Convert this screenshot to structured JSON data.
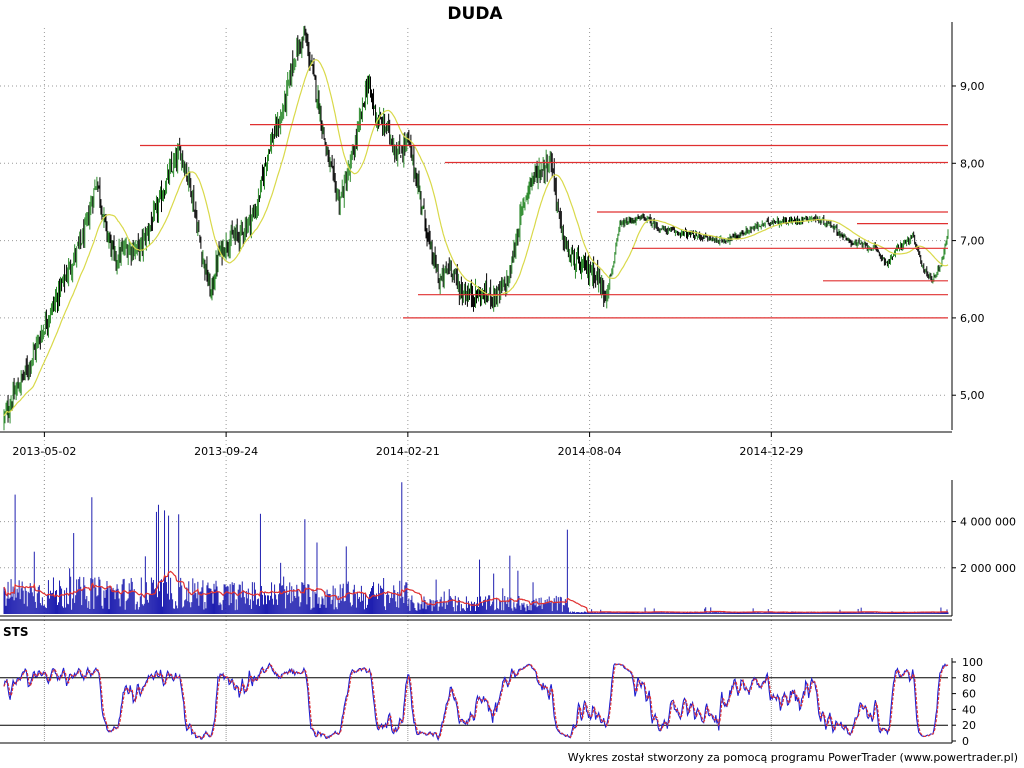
{
  "chart_data": {
    "type": "candlestick",
    "title": "DUDA",
    "footer": "Wykres został stworzony za pomocą programu PowerTrader (www.powertrader.pl)",
    "colors": {
      "grid": "#9a9a9a",
      "up_candle": "#2e8b2e",
      "down_candle": "#000000",
      "moving_average": "#d9d94a",
      "support_resistance": "#e03030",
      "volume_bars": "#1f1fb0",
      "volume_average": "#e03030",
      "stoch_k": "#1f1fd0",
      "stoch_d": "#e03030"
    },
    "price_panel": {
      "y_ticks": [
        "9,00",
        "8,00",
        "7,00",
        "6,00",
        "5,00"
      ],
      "y_tick_values": [
        9.0,
        8.0,
        7.0,
        6.0,
        5.0
      ],
      "ylim": [
        4.55,
        9.75
      ],
      "x_ticks": [
        "2013-05-02",
        "2013-09-24",
        "2014-02-21",
        "2014-08-04",
        "2014-12-29"
      ],
      "x_tick_index": [
        40,
        220,
        400,
        580,
        760
      ],
      "n_bars": 936,
      "close_anchors": [
        [
          0,
          4.7
        ],
        [
          10,
          5.0
        ],
        [
          25,
          5.4
        ],
        [
          40,
          5.9
        ],
        [
          60,
          6.5
        ],
        [
          80,
          7.1
        ],
        [
          92,
          7.8
        ],
        [
          100,
          7.2
        ],
        [
          110,
          6.75
        ],
        [
          120,
          6.9
        ],
        [
          135,
          6.9
        ],
        [
          150,
          7.35
        ],
        [
          165,
          7.9
        ],
        [
          175,
          8.15
        ],
        [
          185,
          7.7
        ],
        [
          195,
          6.9
        ],
        [
          205,
          6.3
        ],
        [
          212,
          6.8
        ],
        [
          222,
          7.0
        ],
        [
          235,
          7.1
        ],
        [
          250,
          7.4
        ],
        [
          262,
          8.2
        ],
        [
          275,
          8.6
        ],
        [
          288,
          9.4
        ],
        [
          298,
          9.65
        ],
        [
          310,
          8.9
        ],
        [
          320,
          8.1
        ],
        [
          332,
          7.5
        ],
        [
          342,
          7.9
        ],
        [
          352,
          8.5
        ],
        [
          360,
          9.05
        ],
        [
          370,
          8.55
        ],
        [
          380,
          8.45
        ],
        [
          390,
          8.1
        ],
        [
          400,
          8.3
        ],
        [
          412,
          7.6
        ],
        [
          422,
          6.9
        ],
        [
          432,
          6.45
        ],
        [
          442,
          6.7
        ],
        [
          452,
          6.35
        ],
        [
          462,
          6.3
        ],
        [
          475,
          6.3
        ],
        [
          490,
          6.3
        ],
        [
          500,
          6.5
        ],
        [
          510,
          7.2
        ],
        [
          520,
          7.75
        ],
        [
          530,
          7.9
        ],
        [
          542,
          8.05
        ],
        [
          552,
          7.1
        ],
        [
          560,
          6.8
        ],
        [
          572,
          6.65
        ],
        [
          585,
          6.6
        ],
        [
          595,
          6.3
        ],
        [
          602,
          6.6
        ],
        [
          610,
          7.2
        ],
        [
          620,
          7.25
        ],
        [
          635,
          7.3
        ],
        [
          650,
          7.15
        ],
        [
          670,
          7.1
        ],
        [
          690,
          7.05
        ],
        [
          710,
          7.0
        ],
        [
          725,
          7.05
        ],
        [
          740,
          7.15
        ],
        [
          760,
          7.25
        ],
        [
          780,
          7.25
        ],
        [
          800,
          7.3
        ],
        [
          820,
          7.2
        ],
        [
          835,
          7.0
        ],
        [
          848,
          6.95
        ],
        [
          862,
          6.9
        ],
        [
          875,
          6.7
        ],
        [
          885,
          6.9
        ],
        [
          900,
          7.05
        ],
        [
          912,
          6.6
        ],
        [
          920,
          6.5
        ],
        [
          928,
          6.7
        ],
        [
          935,
          7.1
        ]
      ],
      "horizontal_lines": [
        {
          "x_start": 250,
          "x_end": 948,
          "y": 8.5
        },
        {
          "x_start": 140,
          "x_end": 948,
          "y": 8.23
        },
        {
          "x_start": 445,
          "x_end": 948,
          "y": 8.01
        },
        {
          "x_start": 597,
          "x_end": 948,
          "y": 7.37
        },
        {
          "x_start": 857,
          "x_end": 948,
          "y": 7.22
        },
        {
          "x_start": 632,
          "x_end": 948,
          "y": 6.9
        },
        {
          "x_start": 823,
          "x_end": 948,
          "y": 6.48
        },
        {
          "x_start": 418,
          "x_end": 948,
          "y": 6.3
        },
        {
          "x_start": 403,
          "x_end": 948,
          "y": 6.0
        }
      ]
    },
    "volume_panel": {
      "y_ticks": [
        "4 000 000",
        "2 000 000"
      ],
      "y_tick_values": [
        4000000,
        2000000
      ],
      "ylim": [
        0,
        5800000
      ]
    },
    "stochastic_panel": {
      "label": "STS",
      "y_ticks": [
        "100",
        "80",
        "60",
        "40",
        "20",
        "0"
      ],
      "y_tick_values": [
        100,
        80,
        60,
        40,
        20,
        0
      ],
      "ylim": [
        0,
        100
      ],
      "reference_lines": [
        80,
        20
      ]
    }
  }
}
